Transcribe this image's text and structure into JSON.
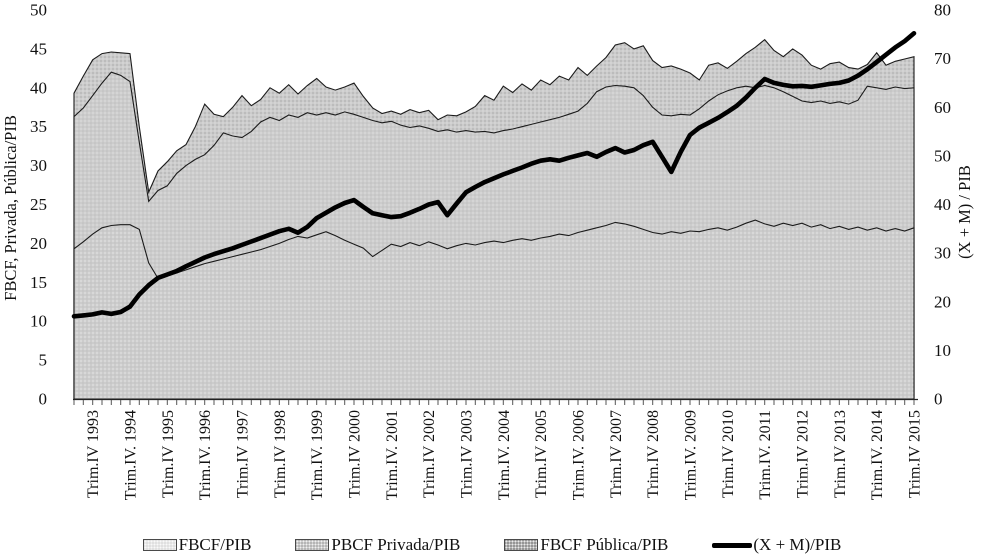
{
  "figure_title": "",
  "colors": {
    "area_light": "#e0e0e0",
    "area_mid": "#b5b5b5",
    "area_dark": "#959595",
    "line": "#000000",
    "outline": "#1b1b1b",
    "axis": "#222222"
  },
  "legend": [
    {
      "label": "FBCF/PIB",
      "swatch": "area_light"
    },
    {
      "label": "PBCF Privada/PIB",
      "swatch": "area_mid"
    },
    {
      "label": "FBCF Pública/PIB",
      "swatch": "area_dark"
    },
    {
      "label": "(X + M)/PIB",
      "swatch": "line"
    }
  ],
  "chart_data": {
    "type": "area+line",
    "description": "Three stacked gray areas (left axis) with thick black line on secondary right axis; quarterly data 1993Q2-2015Q4, 91 points; x labels shown only at each fourth quarter (Trim.IV of each year).",
    "points": 91,
    "x_start": "1993-Q2",
    "x_end": "2015-Q4",
    "first_label_index": 2,
    "label_every_n_points": 4,
    "left_axis": {
      "title": "FBCF, Privada, Pública/PIB",
      "min": 0,
      "max": 50,
      "step": 5,
      "tick_labels": [
        "0",
        "5",
        "10",
        "15",
        "20",
        "25",
        "30",
        "35",
        "40",
        "45",
        "50"
      ]
    },
    "right_axis": {
      "title": "(X + M) / PIB",
      "min": 0,
      "max": 80,
      "step": 10,
      "tick_labels": [
        "0",
        "10",
        "20",
        "30",
        "40",
        "50",
        "60",
        "70",
        "80"
      ]
    },
    "x_labels": [
      "Trim.IV 1993",
      "Trim.IV. 1994",
      "Trim.IV 1995",
      "Trim.IV. 1996",
      "Trim.IV 1997",
      "Trim.IV 1998",
      "Trim.IV. 1999",
      "Trim.IV 2000",
      "Trim.IV. 2001",
      "Trim.IV 2002",
      "Trim.IV 2003",
      "Trim.IV. 2004",
      "Trim.IV 2005",
      "Trim.IV. 2006",
      "Trim.IV 2007",
      "Trim.IV 2008",
      "Trim.IV. 2009",
      "Trim.IV 2010",
      "Trim.IV. 2011",
      "Trim.IV 2012",
      "Trim.IV 2013",
      "Trim.IV. 2014",
      "Trim.IV 2015"
    ],
    "grid": false,
    "legend_position": "bottom",
    "series": [
      {
        "name": "FBCF/PIB",
        "axis": "left",
        "render": "stacked-area-bottom",
        "fill": "area_light",
        "cumulative_top": [
          19.3,
          20.2,
          21.2,
          22.0,
          22.3,
          22.4,
          22.4,
          21.8,
          17.5,
          15.5,
          15.9,
          16.2,
          16.6,
          17.0,
          17.4,
          17.7,
          18.0,
          18.3,
          18.6,
          18.9,
          19.2,
          19.6,
          20.0,
          20.5,
          20.9,
          20.7,
          21.1,
          21.5,
          21.0,
          20.4,
          19.9,
          19.4,
          18.3,
          19.1,
          19.9,
          19.6,
          20.1,
          19.7,
          20.2,
          19.8,
          19.3,
          19.7,
          20.0,
          19.8,
          20.1,
          20.3,
          20.1,
          20.4,
          20.6,
          20.4,
          20.7,
          20.9,
          21.2,
          21.0,
          21.4,
          21.7,
          22.0,
          22.3,
          22.7,
          22.5,
          22.2,
          21.8,
          21.4,
          21.2,
          21.5,
          21.3,
          21.6,
          21.5,
          21.8,
          22.0,
          21.7,
          22.1,
          22.6,
          23.0,
          22.5,
          22.2,
          22.6,
          22.3,
          22.6,
          22.1,
          22.4,
          21.9,
          22.2,
          21.8,
          22.1,
          21.7,
          22.0,
          21.6,
          21.9,
          21.6,
          22.0
        ]
      },
      {
        "name": "PBCF Privada/PIB",
        "axis": "left",
        "render": "stacked-area-middle",
        "fill": "area_mid",
        "cumulative_top": [
          36.3,
          37.4,
          39.0,
          40.6,
          42.0,
          41.6,
          40.8,
          33.0,
          25.4,
          26.8,
          27.4,
          29.0,
          30.0,
          30.8,
          31.4,
          32.6,
          34.2,
          33.8,
          33.6,
          34.4,
          35.6,
          36.2,
          35.8,
          36.5,
          36.2,
          36.8,
          36.5,
          36.8,
          36.5,
          36.9,
          36.6,
          36.2,
          35.8,
          35.5,
          35.7,
          35.2,
          34.9,
          35.1,
          34.8,
          34.4,
          34.6,
          34.3,
          34.5,
          34.3,
          34.4,
          34.2,
          34.5,
          34.7,
          35.0,
          35.3,
          35.6,
          35.9,
          36.2,
          36.6,
          37.0,
          38.0,
          39.5,
          40.1,
          40.3,
          40.2,
          40.0,
          39.0,
          37.5,
          36.5,
          36.4,
          36.6,
          36.5,
          37.3,
          38.3,
          39.1,
          39.6,
          40.0,
          40.2,
          40.0,
          40.3,
          40.0,
          39.5,
          38.9,
          38.3,
          38.1,
          38.3,
          38.0,
          38.2,
          37.9,
          38.4,
          40.2,
          40.0,
          39.8,
          40.1,
          39.9,
          40.0
        ]
      },
      {
        "name": "FBCF Pública/PIB",
        "axis": "left",
        "render": "stacked-area-top",
        "fill": "area_dark",
        "cumulative_top": [
          39.3,
          41.5,
          43.6,
          44.4,
          44.6,
          44.5,
          44.4,
          35.0,
          26.6,
          29.3,
          30.5,
          31.9,
          32.7,
          35.0,
          37.9,
          36.6,
          36.3,
          37.5,
          39.0,
          37.7,
          38.5,
          40.0,
          39.3,
          40.4,
          39.2,
          40.3,
          41.2,
          40.1,
          39.7,
          40.1,
          40.6,
          38.9,
          37.4,
          36.7,
          37.0,
          36.6,
          37.2,
          36.8,
          37.1,
          35.9,
          36.5,
          36.4,
          36.9,
          37.6,
          39.0,
          38.4,
          40.2,
          39.4,
          40.5,
          39.7,
          41.0,
          40.4,
          41.5,
          41.0,
          42.6,
          41.6,
          42.8,
          43.9,
          45.5,
          45.8,
          45.0,
          45.4,
          43.5,
          42.6,
          42.8,
          42.4,
          41.9,
          41.0,
          42.9,
          43.2,
          42.5,
          43.4,
          44.4,
          45.2,
          46.2,
          44.8,
          44.0,
          45.0,
          44.2,
          42.9,
          42.4,
          43.1,
          43.3,
          42.6,
          42.4,
          43.0,
          44.5,
          42.9,
          43.4,
          43.7,
          44.0
        ]
      },
      {
        "name": "(X + M)/PIB",
        "axis": "right",
        "render": "line",
        "stroke": "line",
        "values": [
          17.0,
          17.2,
          17.4,
          17.8,
          17.5,
          17.9,
          19.0,
          21.5,
          23.4,
          24.9,
          25.6,
          26.3,
          27.3,
          28.2,
          29.1,
          29.8,
          30.4,
          31.0,
          31.7,
          32.4,
          33.1,
          33.8,
          34.5,
          35.0,
          34.2,
          35.4,
          37.2,
          38.3,
          39.4,
          40.3,
          40.9,
          39.5,
          38.2,
          37.8,
          37.4,
          37.6,
          38.3,
          39.1,
          40.0,
          40.5,
          37.8,
          40.2,
          42.5,
          43.6,
          44.6,
          45.4,
          46.2,
          46.9,
          47.6,
          48.4,
          49.0,
          49.3,
          49.0,
          49.6,
          50.1,
          50.6,
          49.8,
          50.8,
          51.6,
          50.7,
          51.2,
          52.2,
          52.9,
          49.8,
          46.7,
          50.8,
          54.3,
          55.8,
          56.8,
          57.8,
          59.0,
          60.3,
          62.0,
          64.0,
          65.8,
          65.0,
          64.6,
          64.3,
          64.4,
          64.2,
          64.5,
          64.8,
          65.0,
          65.5,
          66.5,
          67.8,
          69.3,
          70.8,
          72.3,
          73.6,
          75.2
        ]
      }
    ]
  }
}
